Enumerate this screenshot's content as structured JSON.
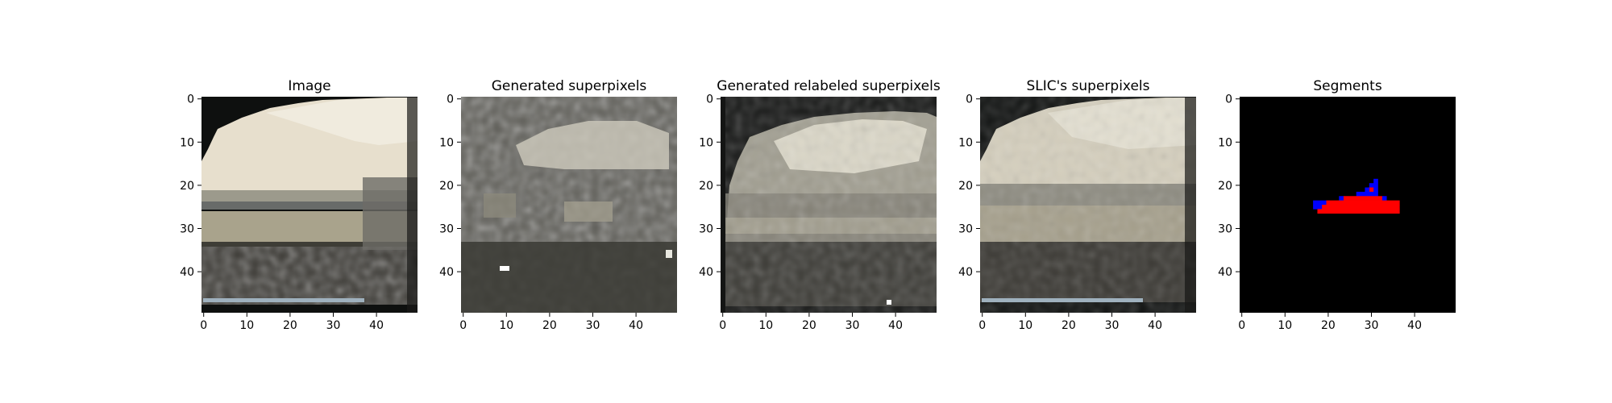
{
  "chart_data": [
    {
      "type": "heatmap",
      "title": "Image",
      "xlabel": "",
      "ylabel": "",
      "xlim": [
        0,
        49
      ],
      "ylim": [
        49,
        0
      ],
      "x_ticks": [
        "0",
        "10",
        "20",
        "30",
        "40"
      ],
      "y_ticks": [
        "0",
        "10",
        "20",
        "30",
        "40"
      ],
      "description_colors": {
        "sky": "#e9e3d2",
        "water": "#b9b39c",
        "ground": "#3f3d37",
        "background": "#0d0f0e"
      }
    },
    {
      "type": "heatmap",
      "title": "Generated superpixels",
      "xlabel": "",
      "ylabel": "",
      "xlim": [
        0,
        49
      ],
      "ylim": [
        49,
        0
      ],
      "x_ticks": [
        "0",
        "10",
        "20",
        "30",
        "40"
      ],
      "y_ticks": [
        "0",
        "10",
        "20",
        "30",
        "40"
      ]
    },
    {
      "type": "heatmap",
      "title": "Generated relabeled superpixels",
      "xlabel": "",
      "ylabel": "",
      "xlim": [
        0,
        49
      ],
      "ylim": [
        49,
        0
      ],
      "x_ticks": [
        "0",
        "10",
        "20",
        "30",
        "40"
      ],
      "y_ticks": [
        "0",
        "10",
        "20",
        "30",
        "40"
      ]
    },
    {
      "type": "heatmap",
      "title": "SLIC's superpixels",
      "xlabel": "",
      "ylabel": "",
      "xlim": [
        0,
        49
      ],
      "ylim": [
        49,
        0
      ],
      "x_ticks": [
        "0",
        "10",
        "20",
        "30",
        "40"
      ],
      "y_ticks": [
        "0",
        "10",
        "20",
        "30",
        "40"
      ]
    },
    {
      "type": "heatmap",
      "title": "Segments",
      "xlabel": "",
      "ylabel": "",
      "xlim": [
        0,
        49
      ],
      "ylim": [
        49,
        0
      ],
      "x_ticks": [
        "0",
        "10",
        "20",
        "30",
        "40"
      ],
      "y_ticks": [
        "0",
        "10",
        "20",
        "30",
        "40"
      ],
      "segment_colors": {
        "background": "#000000",
        "fill": "#ff0000",
        "edge": "#0000ff"
      },
      "segment_rows": [
        {
          "y": 19,
          "red": [],
          "blue": [
            [
              31,
              31
            ]
          ]
        },
        {
          "y": 20,
          "red": [],
          "blue": [
            [
              30,
              31
            ]
          ]
        },
        {
          "y": 21,
          "red": [
            [
              30,
              30
            ]
          ],
          "blue": [
            [
              29,
              29
            ],
            [
              31,
              31
            ]
          ]
        },
        {
          "y": 22,
          "red": [],
          "blue": [
            [
              27,
              31
            ]
          ]
        },
        {
          "y": 23,
          "red": [
            [
              24,
              32
            ]
          ],
          "blue": [
            [
              23,
              23
            ],
            [
              33,
              33
            ]
          ]
        },
        {
          "y": 24,
          "red": [
            [
              20,
              36
            ]
          ],
          "blue": [
            [
              17,
              19
            ]
          ]
        },
        {
          "y": 25,
          "red": [
            [
              19,
              36
            ]
          ],
          "blue": [
            [
              17,
              18
            ]
          ]
        },
        {
          "y": 26,
          "red": [
            [
              18,
              36
            ]
          ],
          "blue": []
        }
      ]
    }
  ]
}
